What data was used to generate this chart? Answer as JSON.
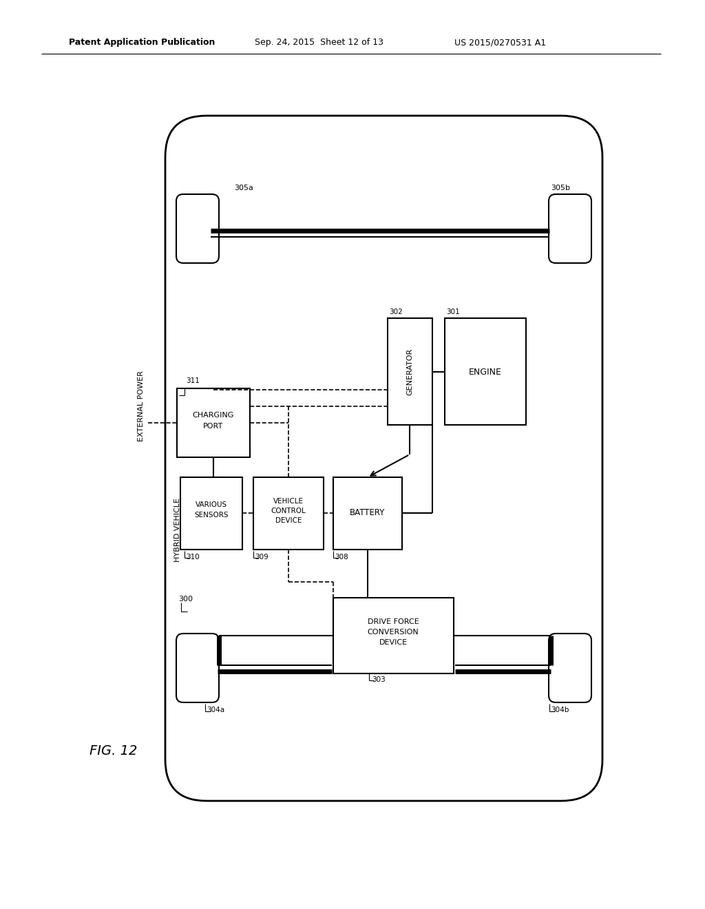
{
  "header_left": "Patent Application Publication",
  "header_mid": "Sep. 24, 2015  Sheet 12 of 13",
  "header_right": "US 2015/0270531 A1",
  "fig_label": "FIG. 12"
}
